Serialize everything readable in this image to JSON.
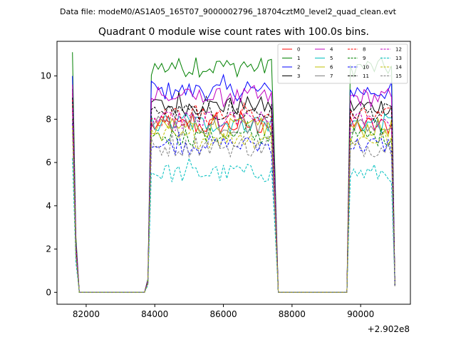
{
  "suptitle": "Data file: modeM0/AS1A05_165T07_9000002796_18704cztM0_level2_quad_clean.evt",
  "chart_data": {
    "type": "line",
    "title": "Quadrant 0 module wise count rates with 100.0s bins.",
    "xlabel": "",
    "ylabel": "",
    "x_offset_label": "+2.902e8",
    "xlim": [
      81150,
      91450
    ],
    "ylim": [
      -0.55,
      11.6
    ],
    "xticks": [
      82000,
      84000,
      86000,
      88000,
      90000
    ],
    "yticks": [
      0,
      2,
      4,
      6,
      8,
      10
    ],
    "legend_loc": "upper right",
    "x_start": 81600,
    "bin": 100,
    "n_points": 95,
    "segments": [
      {
        "label": "edge",
        "start": 81600,
        "end": 81750
      },
      {
        "label": "gap",
        "start": 81800,
        "end": 83700
      },
      {
        "label": "on",
        "start": 83850,
        "end": 87450
      },
      {
        "label": "gap",
        "start": 87600,
        "end": 89600
      },
      {
        "label": "on",
        "start": 89700,
        "end": 90950
      }
    ],
    "series": [
      {
        "name": "0",
        "color": "#ff0000",
        "dash": "solid",
        "level": 7.7,
        "start_value": 9.2
      },
      {
        "name": "1",
        "color": "#008000",
        "dash": "solid",
        "level": 10.4,
        "start_value": 11.1
      },
      {
        "name": "2",
        "color": "#0000ff",
        "dash": "solid",
        "level": 9.3,
        "start_value": 10.0
      },
      {
        "name": "3",
        "color": "#000000",
        "dash": "solid",
        "level": 8.6,
        "start_value": 9.4
      },
      {
        "name": "4",
        "color": "#c000c0",
        "dash": "solid",
        "level": 9.0,
        "start_value": 9.6
      },
      {
        "name": "5",
        "color": "#00bfbf",
        "dash": "solid",
        "level": 7.8,
        "start_value": 8.8
      },
      {
        "name": "6",
        "color": "#bfbf00",
        "dash": "solid",
        "level": 7.6,
        "start_value": 8.6
      },
      {
        "name": "7",
        "color": "#808080",
        "dash": "solid",
        "level": 7.7,
        "start_value": 8.4
      },
      {
        "name": "8",
        "color": "#ff0000",
        "dash": "dashed",
        "level": 8.1,
        "start_value": 8.9
      },
      {
        "name": "9",
        "color": "#008000",
        "dash": "dashed",
        "level": 7.2,
        "start_value": 8.0
      },
      {
        "name": "10",
        "color": "#0000ff",
        "dash": "dashed",
        "level": 6.8,
        "start_value": 7.8
      },
      {
        "name": "11",
        "color": "#000000",
        "dash": "dashed",
        "level": 8.3,
        "start_value": 9.0
      },
      {
        "name": "12",
        "color": "#c000c0",
        "dash": "dashed",
        "level": 7.9,
        "start_value": 8.5
      },
      {
        "name": "13",
        "color": "#00bfbf",
        "dash": "dashed",
        "level": 5.5,
        "start_value": 6.2
      },
      {
        "name": "14",
        "color": "#bfbf00",
        "dash": "dashed",
        "level": 7.1,
        "start_value": 7.7
      },
      {
        "name": "15",
        "color": "#808080",
        "dash": "dashed",
        "level": 6.7,
        "start_value": 7.4
      }
    ]
  }
}
